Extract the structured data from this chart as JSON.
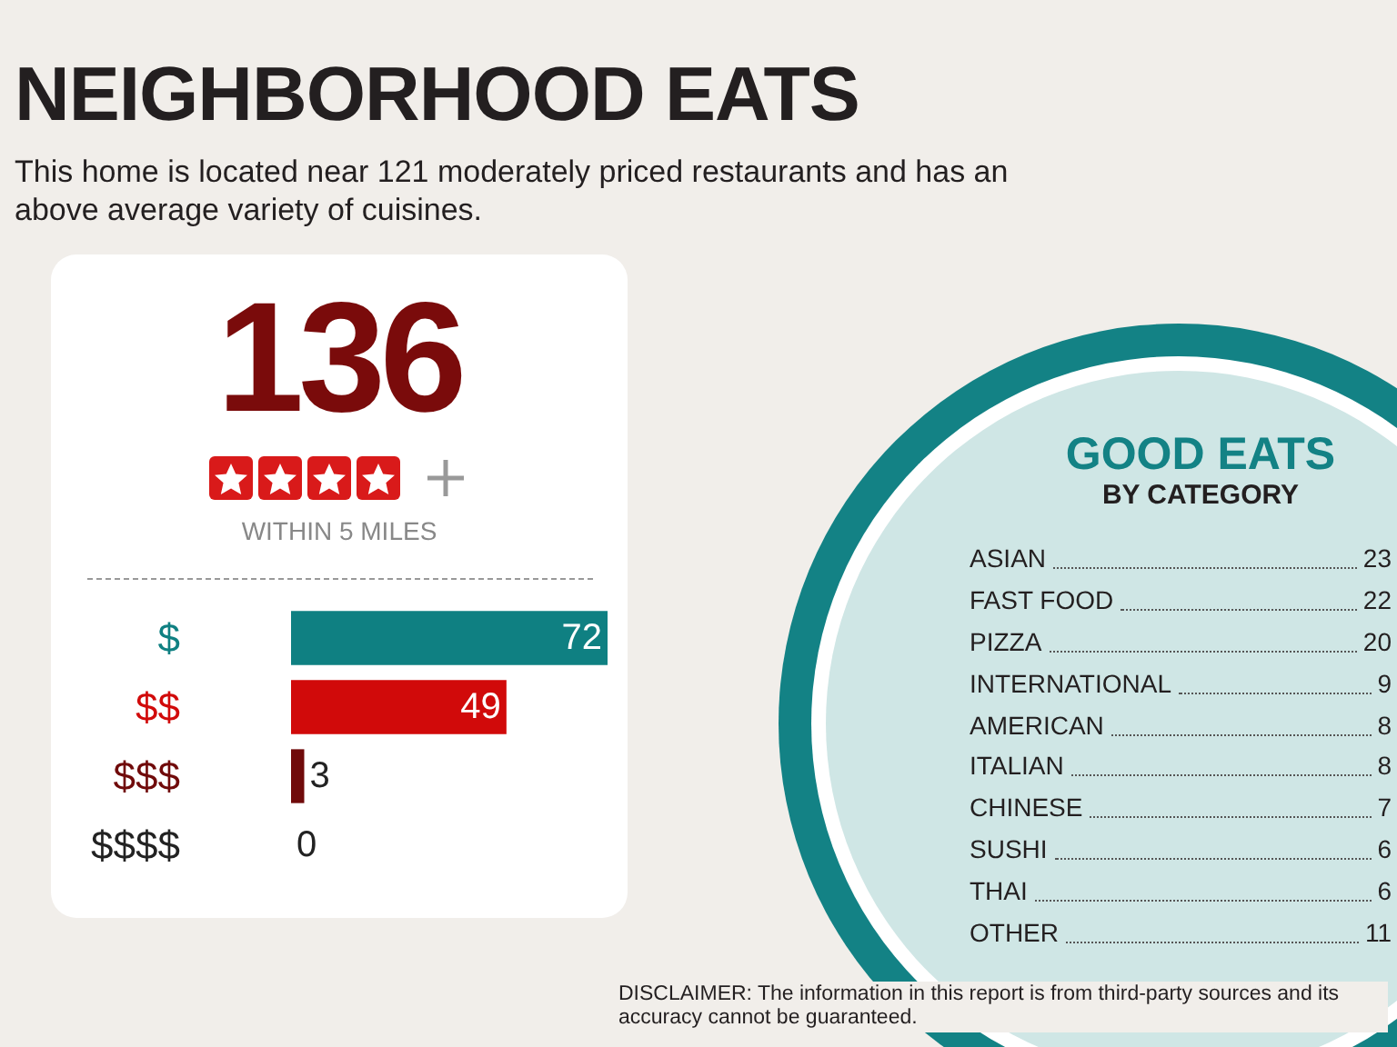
{
  "chart_data": [
    {
      "type": "bar",
      "orientation": "horizontal",
      "title": "NEIGHBORHOOD EATS",
      "subtitle": "This home is located near 121 moderately priced restaurants and has an above average variety of cuisines.",
      "categories": [
        "$",
        "$$",
        "$$$",
        "$$$$"
      ],
      "values": [
        72,
        49,
        3,
        0
      ],
      "colors": [
        "#0f8082",
        "#d10a0a",
        "#700a0a",
        "#222222"
      ],
      "data_labels": true,
      "annotations": [
        "136",
        "WITHIN 5 MILES",
        "DISCLAIMER: The information in this report is from third-party sources and its accuracy cannot be guaranteed."
      ]
    },
    {
      "type": "other",
      "title": "GOOD EATS",
      "subtitle": "BY CATEGORY",
      "annotations": [
        "ASIAN",
        "23",
        "FAST FOOD",
        "22",
        "PIZZA",
        "20",
        "INTERNATIONAL",
        "9",
        "AMERICAN",
        "8",
        "ITALIAN",
        "8",
        "CHINESE",
        "7",
        "SUSHI",
        "6",
        "THAI",
        "6",
        "OTHER",
        "11"
      ]
    }
  ]
}
